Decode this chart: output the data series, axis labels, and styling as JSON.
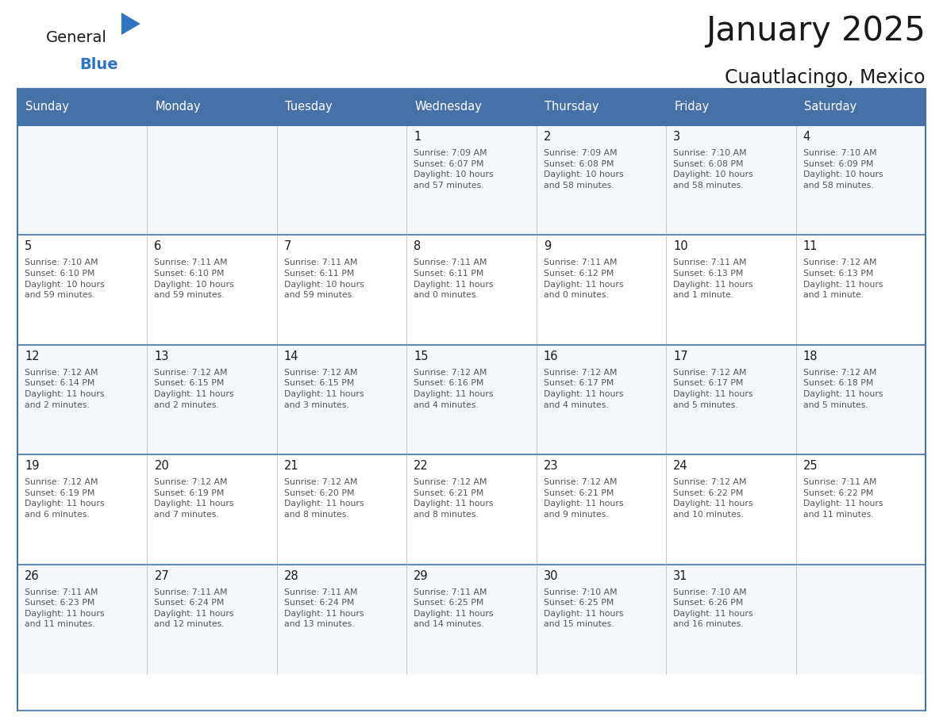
{
  "title": "January 2025",
  "subtitle": "Cuautlacingo, Mexico",
  "header_bg": "#4472a8",
  "header_text": "#ffffff",
  "border_color": "#4472a8",
  "row_border_color": "#4472a8",
  "cell_border_color": "#c0c0c0",
  "title_color": "#1a1a1a",
  "subtitle_color": "#1a1a1a",
  "day_num_color": "#1a1a1a",
  "cell_text_color": "#555555",
  "logo_general_color": "#1a1a1a",
  "logo_blue_color": "#2e74c0",
  "logo_triangle_color": "#2e74c0",
  "day_headers": [
    "Sunday",
    "Monday",
    "Tuesday",
    "Wednesday",
    "Thursday",
    "Friday",
    "Saturday"
  ],
  "calendar": [
    [
      {
        "day": "",
        "text": ""
      },
      {
        "day": "",
        "text": ""
      },
      {
        "day": "",
        "text": ""
      },
      {
        "day": "1",
        "text": "Sunrise: 7:09 AM\nSunset: 6:07 PM\nDaylight: 10 hours\nand 57 minutes."
      },
      {
        "day": "2",
        "text": "Sunrise: 7:09 AM\nSunset: 6:08 PM\nDaylight: 10 hours\nand 58 minutes."
      },
      {
        "day": "3",
        "text": "Sunrise: 7:10 AM\nSunset: 6:08 PM\nDaylight: 10 hours\nand 58 minutes."
      },
      {
        "day": "4",
        "text": "Sunrise: 7:10 AM\nSunset: 6:09 PM\nDaylight: 10 hours\nand 58 minutes."
      }
    ],
    [
      {
        "day": "5",
        "text": "Sunrise: 7:10 AM\nSunset: 6:10 PM\nDaylight: 10 hours\nand 59 minutes."
      },
      {
        "day": "6",
        "text": "Sunrise: 7:11 AM\nSunset: 6:10 PM\nDaylight: 10 hours\nand 59 minutes."
      },
      {
        "day": "7",
        "text": "Sunrise: 7:11 AM\nSunset: 6:11 PM\nDaylight: 10 hours\nand 59 minutes."
      },
      {
        "day": "8",
        "text": "Sunrise: 7:11 AM\nSunset: 6:11 PM\nDaylight: 11 hours\nand 0 minutes."
      },
      {
        "day": "9",
        "text": "Sunrise: 7:11 AM\nSunset: 6:12 PM\nDaylight: 11 hours\nand 0 minutes."
      },
      {
        "day": "10",
        "text": "Sunrise: 7:11 AM\nSunset: 6:13 PM\nDaylight: 11 hours\nand 1 minute."
      },
      {
        "day": "11",
        "text": "Sunrise: 7:12 AM\nSunset: 6:13 PM\nDaylight: 11 hours\nand 1 minute."
      }
    ],
    [
      {
        "day": "12",
        "text": "Sunrise: 7:12 AM\nSunset: 6:14 PM\nDaylight: 11 hours\nand 2 minutes."
      },
      {
        "day": "13",
        "text": "Sunrise: 7:12 AM\nSunset: 6:15 PM\nDaylight: 11 hours\nand 2 minutes."
      },
      {
        "day": "14",
        "text": "Sunrise: 7:12 AM\nSunset: 6:15 PM\nDaylight: 11 hours\nand 3 minutes."
      },
      {
        "day": "15",
        "text": "Sunrise: 7:12 AM\nSunset: 6:16 PM\nDaylight: 11 hours\nand 4 minutes."
      },
      {
        "day": "16",
        "text": "Sunrise: 7:12 AM\nSunset: 6:17 PM\nDaylight: 11 hours\nand 4 minutes."
      },
      {
        "day": "17",
        "text": "Sunrise: 7:12 AM\nSunset: 6:17 PM\nDaylight: 11 hours\nand 5 minutes."
      },
      {
        "day": "18",
        "text": "Sunrise: 7:12 AM\nSunset: 6:18 PM\nDaylight: 11 hours\nand 5 minutes."
      }
    ],
    [
      {
        "day": "19",
        "text": "Sunrise: 7:12 AM\nSunset: 6:19 PM\nDaylight: 11 hours\nand 6 minutes."
      },
      {
        "day": "20",
        "text": "Sunrise: 7:12 AM\nSunset: 6:19 PM\nDaylight: 11 hours\nand 7 minutes."
      },
      {
        "day": "21",
        "text": "Sunrise: 7:12 AM\nSunset: 6:20 PM\nDaylight: 11 hours\nand 8 minutes."
      },
      {
        "day": "22",
        "text": "Sunrise: 7:12 AM\nSunset: 6:21 PM\nDaylight: 11 hours\nand 8 minutes."
      },
      {
        "day": "23",
        "text": "Sunrise: 7:12 AM\nSunset: 6:21 PM\nDaylight: 11 hours\nand 9 minutes."
      },
      {
        "day": "24",
        "text": "Sunrise: 7:12 AM\nSunset: 6:22 PM\nDaylight: 11 hours\nand 10 minutes."
      },
      {
        "day": "25",
        "text": "Sunrise: 7:11 AM\nSunset: 6:22 PM\nDaylight: 11 hours\nand 11 minutes."
      }
    ],
    [
      {
        "day": "26",
        "text": "Sunrise: 7:11 AM\nSunset: 6:23 PM\nDaylight: 11 hours\nand 11 minutes."
      },
      {
        "day": "27",
        "text": "Sunrise: 7:11 AM\nSunset: 6:24 PM\nDaylight: 11 hours\nand 12 minutes."
      },
      {
        "day": "28",
        "text": "Sunrise: 7:11 AM\nSunset: 6:24 PM\nDaylight: 11 hours\nand 13 minutes."
      },
      {
        "day": "29",
        "text": "Sunrise: 7:11 AM\nSunset: 6:25 PM\nDaylight: 11 hours\nand 14 minutes."
      },
      {
        "day": "30",
        "text": "Sunrise: 7:10 AM\nSunset: 6:25 PM\nDaylight: 11 hours\nand 15 minutes."
      },
      {
        "day": "31",
        "text": "Sunrise: 7:10 AM\nSunset: 6:26 PM\nDaylight: 11 hours\nand 16 minutes."
      },
      {
        "day": "",
        "text": ""
      }
    ]
  ]
}
